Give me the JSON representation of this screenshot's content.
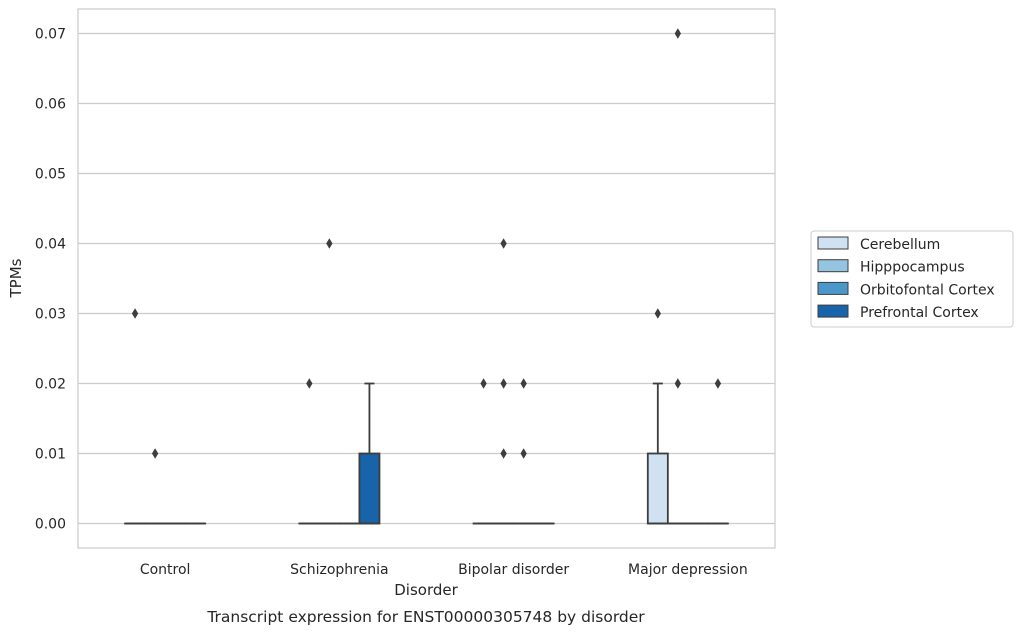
{
  "chart_data": {
    "type": "box",
    "title": "",
    "caption": "Transcript expression for ENST00000305748 by disorder",
    "xlabel": "Disorder",
    "ylabel": "TPMs",
    "ylim": [
      -0.0035,
      0.0735
    ],
    "yticks": [
      "0.00",
      "0.01",
      "0.02",
      "0.03",
      "0.04",
      "0.05",
      "0.06",
      "0.07"
    ],
    "ytick_values": [
      0,
      0.01,
      0.02,
      0.03,
      0.04,
      0.05,
      0.06,
      0.07
    ],
    "grid": true,
    "legend_placement": "center-right outside",
    "categories": [
      "Control",
      "Schizophrenia",
      "Bipolar disorder",
      "Major depression"
    ],
    "series": [
      {
        "name": "Cerebellum",
        "color": "#d0e1f2",
        "boxes": [
          {
            "q1": 0,
            "median": 0,
            "q3": 0,
            "whisker_low": 0,
            "whisker_high": 0,
            "outliers": [
              0.03
            ]
          },
          {
            "q1": 0,
            "median": 0,
            "q3": 0,
            "whisker_low": 0,
            "whisker_high": 0,
            "outliers": [
              0.02
            ]
          },
          {
            "q1": 0,
            "median": 0,
            "q3": 0,
            "whisker_low": 0,
            "whisker_high": 0,
            "outliers": [
              0.02
            ]
          },
          {
            "q1": 0,
            "median": 0,
            "q3": 0.01,
            "whisker_low": 0,
            "whisker_high": 0.02,
            "outliers": [
              0.03
            ]
          }
        ]
      },
      {
        "name": "Hipppocampus",
        "color": "#94c4df",
        "boxes": [
          {
            "q1": 0,
            "median": 0,
            "q3": 0,
            "whisker_low": 0,
            "whisker_high": 0,
            "outliers": [
              0.01
            ]
          },
          {
            "q1": 0,
            "median": 0,
            "q3": 0,
            "whisker_low": 0,
            "whisker_high": 0,
            "outliers": [
              0.04
            ]
          },
          {
            "q1": 0,
            "median": 0,
            "q3": 0,
            "whisker_low": 0,
            "whisker_high": 0,
            "outliers": [
              0.04,
              0.02,
              0.01
            ]
          },
          {
            "q1": 0,
            "median": 0,
            "q3": 0,
            "whisker_low": 0,
            "whisker_high": 0,
            "outliers": [
              0.07,
              0.02
            ]
          }
        ]
      },
      {
        "name": "Orbitofontal Cortex",
        "color": "#4a98c9",
        "boxes": [
          {
            "q1": 0,
            "median": 0,
            "q3": 0,
            "whisker_low": 0,
            "whisker_high": 0,
            "outliers": []
          },
          {
            "q1": 0,
            "median": 0,
            "q3": 0,
            "whisker_low": 0,
            "whisker_high": 0,
            "outliers": []
          },
          {
            "q1": 0,
            "median": 0,
            "q3": 0,
            "whisker_low": 0,
            "whisker_high": 0,
            "outliers": [
              0.02,
              0.01
            ]
          },
          {
            "q1": 0,
            "median": 0,
            "q3": 0,
            "whisker_low": 0,
            "whisker_high": 0,
            "outliers": []
          }
        ]
      },
      {
        "name": "Prefrontal Cortex",
        "color": "#1764ab",
        "boxes": [
          {
            "q1": 0,
            "median": 0,
            "q3": 0,
            "whisker_low": 0,
            "whisker_high": 0,
            "outliers": []
          },
          {
            "q1": 0,
            "median": 0,
            "q3": 0.01,
            "whisker_low": 0,
            "whisker_high": 0.02,
            "outliers": []
          },
          {
            "q1": 0,
            "median": 0,
            "q3": 0,
            "whisker_low": 0,
            "whisker_high": 0,
            "outliers": []
          },
          {
            "q1": 0,
            "median": 0,
            "q3": 0,
            "whisker_low": 0,
            "whisker_high": 0,
            "outliers": [
              0.02
            ]
          }
        ]
      }
    ]
  }
}
